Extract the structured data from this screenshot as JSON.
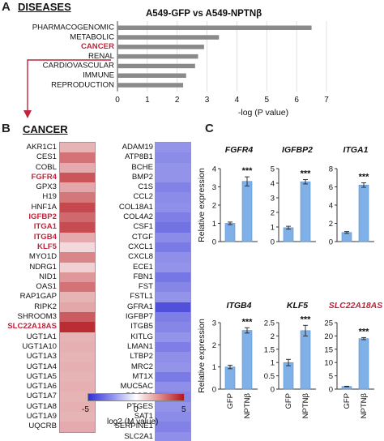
{
  "panel_a": {
    "letter": "A",
    "heading": "DISEASES",
    "title": "A549-GFP vs A549-NPTNβ",
    "connector_color": "#c0243a"
  },
  "panel_b": {
    "letter": "B",
    "heading": "CANCER",
    "scale_ticks": [
      "-5",
      "0",
      "5"
    ],
    "scale_label": "log2 (M value)"
  },
  "panel_c": {
    "letter": "C",
    "ylabel": "Relative expression",
    "xcats": [
      "GFP",
      "NPTNβ"
    ],
    "sig": "***"
  },
  "chart_data": [
    {
      "type": "bar",
      "orientation": "horizontal",
      "title": "A549-GFP vs A549-NPTNβ",
      "categories": [
        "PHARMACOGENOMIC",
        "METABOLIC",
        "CANCER",
        "RENAL",
        "CARDIOVASCULAR",
        "IMMUNE",
        "REPRODUCTION"
      ],
      "highlight": "CANCER",
      "values": [
        6.5,
        3.4,
        2.9,
        2.7,
        2.6,
        2.3,
        2.2
      ],
      "xlabel": "-log (P value)",
      "xticks": [
        0,
        1,
        2,
        3,
        4,
        5,
        6,
        7
      ],
      "xlim": [
        0,
        7
      ],
      "bar_color": "#8a8a8a"
    },
    {
      "type": "heatmap",
      "scale": "log2 (M value)",
      "range": [
        -5,
        5
      ],
      "up_genes": [
        {
          "gene": "AKR1C1",
          "value": 1.6,
          "red": false
        },
        {
          "gene": "CES1",
          "value": 3.0,
          "red": false
        },
        {
          "gene": "COBL",
          "value": 1.8,
          "red": false
        },
        {
          "gene": "FGFR4",
          "value": 3.6,
          "red": true
        },
        {
          "gene": "GPX3",
          "value": 1.9,
          "red": false
        },
        {
          "gene": "H19",
          "value": 2.9,
          "red": false
        },
        {
          "gene": "HNF1A",
          "value": 3.9,
          "red": false
        },
        {
          "gene": "IGFBP2",
          "value": 3.2,
          "red": true
        },
        {
          "gene": "ITGA1",
          "value": 3.8,
          "red": true
        },
        {
          "gene": "ITGB4",
          "value": 1.8,
          "red": true
        },
        {
          "gene": "KLF5",
          "value": 0.8,
          "red": true
        },
        {
          "gene": "MYO1D",
          "value": 2.6,
          "red": false
        },
        {
          "gene": "NDRG1",
          "value": 1.0,
          "red": false
        },
        {
          "gene": "NID1",
          "value": 2.2,
          "red": false
        },
        {
          "gene": "OAS1",
          "value": 3.0,
          "red": false
        },
        {
          "gene": "RAP1GAP",
          "value": 1.6,
          "red": false
        },
        {
          "gene": "RIPK2",
          "value": 1.9,
          "red": false
        },
        {
          "gene": "SHROOM3",
          "value": 3.5,
          "red": false
        },
        {
          "gene": "SLC22A18AS",
          "value": 4.5,
          "red": true
        },
        {
          "gene": "UGT1A1",
          "value": 1.6,
          "red": false
        },
        {
          "gene": "UGT1A10",
          "value": 1.7,
          "red": false
        },
        {
          "gene": "UGT1A3",
          "value": 1.6,
          "red": false
        },
        {
          "gene": "UGT1A4",
          "value": 1.7,
          "red": false
        },
        {
          "gene": "UGT1A5",
          "value": 1.6,
          "red": false
        },
        {
          "gene": "UGT1A6",
          "value": 1.7,
          "red": false
        },
        {
          "gene": "UGT1A7",
          "value": 1.6,
          "red": false
        },
        {
          "gene": "UGT1A8",
          "value": 1.7,
          "red": false
        },
        {
          "gene": "UGT1A9",
          "value": 1.6,
          "red": false
        },
        {
          "gene": "UQCRB",
          "value": 1.8,
          "red": false
        }
      ],
      "down_genes": [
        {
          "gene": "ADAM19",
          "value": -2.6
        },
        {
          "gene": "ATP8B1",
          "value": -2.8
        },
        {
          "gene": "BCHE",
          "value": -2.6
        },
        {
          "gene": "BMP2",
          "value": -2.6
        },
        {
          "gene": "C1S",
          "value": -3.0
        },
        {
          "gene": "CCL2",
          "value": -2.8
        },
        {
          "gene": "COL18A1",
          "value": -2.7
        },
        {
          "gene": "COL4A2",
          "value": -3.1
        },
        {
          "gene": "CSF1",
          "value": -3.4
        },
        {
          "gene": "CTGF",
          "value": -2.8
        },
        {
          "gene": "CXCL1",
          "value": -3.2
        },
        {
          "gene": "CXCL8",
          "value": -2.7
        },
        {
          "gene": "ECE1",
          "value": -2.6
        },
        {
          "gene": "FBN1",
          "value": -3.3
        },
        {
          "gene": "FST",
          "value": -2.9
        },
        {
          "gene": "FSTL1",
          "value": -2.6
        },
        {
          "gene": "GFRA1",
          "value": -4.2
        },
        {
          "gene": "IGFBP7",
          "value": -3.1
        },
        {
          "gene": "ITGB5",
          "value": -2.9
        },
        {
          "gene": "KITLG",
          "value": -2.6
        },
        {
          "gene": "LMAN1",
          "value": -3.1
        },
        {
          "gene": "LTBP2",
          "value": -2.7
        },
        {
          "gene": "MRC2",
          "value": -2.6
        },
        {
          "gene": "MT1X",
          "value": -3.2
        },
        {
          "gene": "MUC5AC",
          "value": -2.7
        },
        {
          "gene": "PDGFC",
          "value": -2.9
        },
        {
          "gene": "PTGES",
          "value": -2.6
        },
        {
          "gene": "SAT1",
          "value": -2.8
        },
        {
          "gene": "SERPINE1",
          "value": -3.0
        },
        {
          "gene": "SLC2A1",
          "value": -2.7
        }
      ]
    },
    {
      "type": "bar",
      "title": "FGFR4",
      "categories": [
        "GFP",
        "NPTNβ"
      ],
      "values": [
        1.0,
        3.3
      ],
      "errors": [
        0.07,
        0.25
      ],
      "yticks": [
        0,
        1,
        2,
        3,
        4
      ],
      "ylim": [
        0,
        4
      ],
      "sig": "***",
      "red_title": false
    },
    {
      "type": "bar",
      "title": "IGFBP2",
      "categories": [
        "GFP",
        "NPTNβ"
      ],
      "values": [
        0.95,
        4.1
      ],
      "errors": [
        0.1,
        0.15
      ],
      "yticks": [
        0,
        1,
        2,
        3,
        4,
        5
      ],
      "ylim": [
        0,
        5
      ],
      "sig": "***",
      "red_title": false
    },
    {
      "type": "bar",
      "title": "ITGA1",
      "categories": [
        "GFP",
        "NPTNβ"
      ],
      "values": [
        1.0,
        6.2
      ],
      "errors": [
        0.1,
        0.25
      ],
      "yticks": [
        0,
        2,
        4,
        6,
        8
      ],
      "ylim": [
        0,
        8
      ],
      "sig": "***",
      "red_title": false
    },
    {
      "type": "bar",
      "title": "ITGB4",
      "categories": [
        "GFP",
        "NPTNβ"
      ],
      "values": [
        1.0,
        2.65
      ],
      "errors": [
        0.08,
        0.12
      ],
      "yticks": [
        0,
        1,
        2,
        3
      ],
      "ylim": [
        0,
        3
      ],
      "sig": "***",
      "red_title": false
    },
    {
      "type": "bar",
      "title": "KLF5",
      "categories": [
        "GFP",
        "NPTNβ"
      ],
      "values": [
        1.0,
        2.2
      ],
      "errors": [
        0.12,
        0.2
      ],
      "yticks": [
        0,
        0.5,
        1,
        1.5,
        2,
        2.5
      ],
      "ylim": [
        0,
        2.5
      ],
      "sig": "***",
      "red_title": false
    },
    {
      "type": "bar",
      "title": "SLC22A18AS",
      "categories": [
        "GFP",
        "NPTNβ"
      ],
      "values": [
        1.0,
        19.0
      ],
      "errors": [
        0.1,
        0.4
      ],
      "yticks": [
        0,
        5,
        10,
        15,
        20,
        25
      ],
      "ylim": [
        0,
        25
      ],
      "sig": "***",
      "red_title": true
    }
  ]
}
